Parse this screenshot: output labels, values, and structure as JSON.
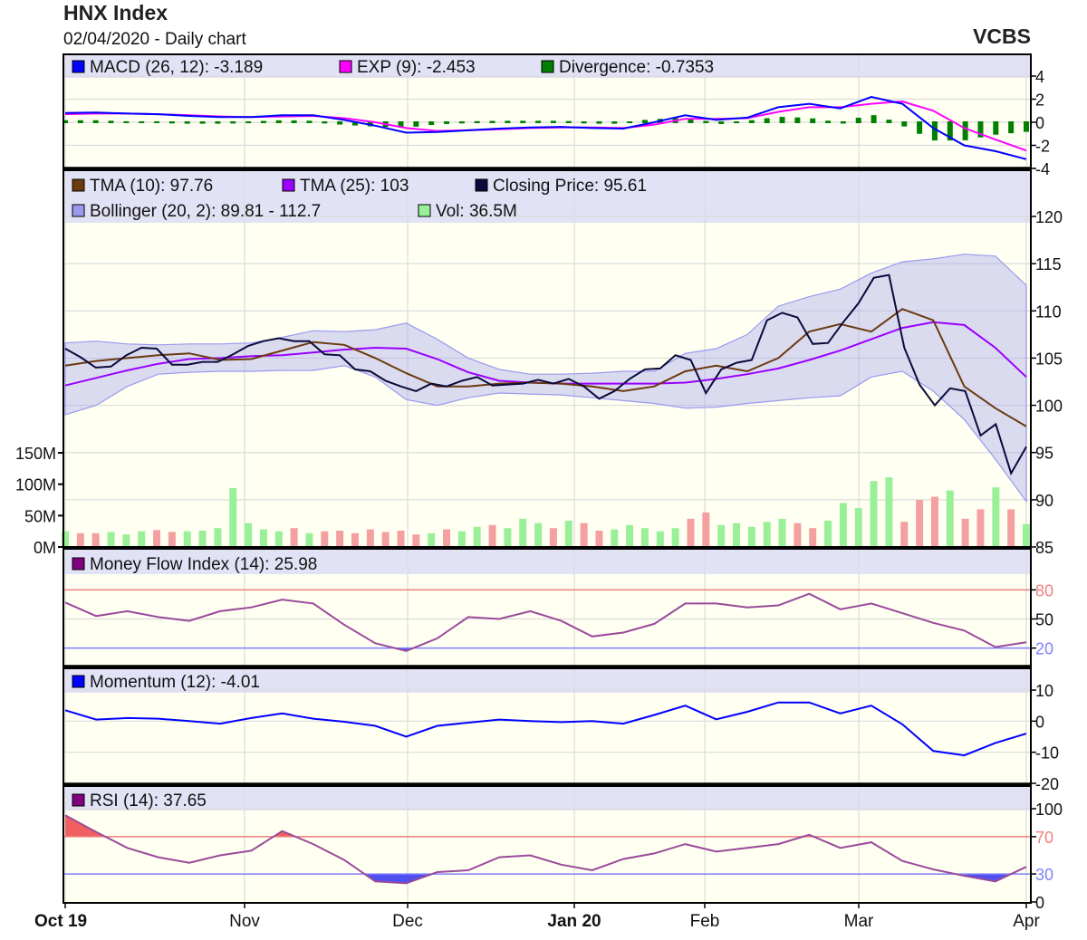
{
  "header": {
    "title": "HNX Index",
    "subtitle": "02/04/2020 - Daily chart",
    "brand": "VCBS"
  },
  "colors": {
    "macd": "#0000ff",
    "exp": "#ff00ff",
    "divergence": "#008000",
    "tma10": "#6b3a0f",
    "tma25": "#9900ff",
    "close": "#0a0a3c",
    "bollinger": "#9999ee",
    "vol_up": "#99f099",
    "vol_down": "#f4a0a0",
    "mfi": "#800080",
    "momentum": "#0000ff",
    "rsi": "#800080",
    "upper_ref": "#f08080",
    "lower_ref": "#8080ff"
  },
  "chart_data": [
    {
      "type": "line",
      "panel": "macd",
      "legend": [
        "MACD (26, 12): -3.189",
        "EXP (9): -2.453",
        "Divergence: -0.7353"
      ],
      "yticks": [
        "4",
        "2",
        "0",
        "-2",
        "-4"
      ],
      "ylim": [
        -4,
        4
      ],
      "series": [
        {
          "name": "MACD",
          "values": [
            0.8,
            0.85,
            0.75,
            0.7,
            0.55,
            0.45,
            0.45,
            0.6,
            0.6,
            0.2,
            -0.3,
            -0.9,
            -0.85,
            -0.7,
            -0.55,
            -0.45,
            -0.4,
            -0.5,
            -0.55,
            0.0,
            0.6,
            0.2,
            0.4,
            1.3,
            1.6,
            1.2,
            2.2,
            1.6,
            -0.5,
            -2.0,
            -2.5,
            -3.2
          ]
        },
        {
          "name": "EXP",
          "values": [
            0.7,
            0.75,
            0.75,
            0.7,
            0.6,
            0.5,
            0.45,
            0.5,
            0.55,
            0.35,
            0.0,
            -0.5,
            -0.75,
            -0.7,
            -0.6,
            -0.5,
            -0.45,
            -0.45,
            -0.5,
            -0.2,
            0.3,
            0.3,
            0.35,
            0.9,
            1.3,
            1.3,
            1.6,
            1.8,
            1.0,
            -0.5,
            -1.5,
            -2.45
          ]
        }
      ]
    },
    {
      "type": "line",
      "panel": "price",
      "legend": [
        "TMA (10): 97.76",
        "TMA (25): 103",
        "Closing Price: 95.61",
        "Bollinger (20, 2): 89.81 - 112.7",
        "Vol: 36.5M"
      ],
      "yticks": [
        "120",
        "115",
        "110",
        "105",
        "100",
        "95",
        "90",
        "85"
      ],
      "ylim": [
        85,
        120
      ],
      "vol_ticks": [
        "150M",
        "100M",
        "50M",
        "0M"
      ],
      "vol_lim": [
        0,
        150
      ],
      "series": [
        {
          "name": "Closing Price",
          "values": [
            106.0,
            105.1,
            104.0,
            104.1,
            105.3,
            106.1,
            106.0,
            104.3,
            104.3,
            104.6,
            104.6,
            105.4,
            106.3,
            106.8,
            107.1,
            106.8,
            106.8,
            105.4,
            105.3,
            103.8,
            103.6,
            102.6,
            102.0,
            101.5,
            102.3,
            102.0,
            102.6,
            103.0,
            102.1,
            102.2,
            102.3,
            102.7,
            102.3,
            102.8,
            102.0,
            100.7,
            101.5,
            102.8,
            103.8,
            103.9,
            105.3,
            104.8,
            101.3,
            103.8,
            104.5,
            104.8,
            109.0,
            109.8,
            109.3,
            106.5,
            106.6,
            108.8,
            110.8,
            113.5,
            113.8,
            106.1,
            102.2,
            100.0,
            101.8,
            101.5,
            96.8,
            98.0,
            92.8,
            95.61
          ]
        },
        {
          "name": "TMA (10)",
          "values": [
            104.2,
            104.7,
            105.0,
            105.3,
            105.5,
            104.8,
            104.9,
            105.8,
            106.7,
            106.4,
            105.0,
            103.4,
            102.0,
            102.0,
            102.3,
            102.4,
            102.3,
            102.0,
            101.5,
            102.0,
            103.6,
            104.2,
            103.6,
            105.0,
            107.8,
            108.6,
            107.8,
            110.2,
            109.0,
            102.0,
            99.7,
            97.76
          ]
        },
        {
          "name": "TMA (25)",
          "values": [
            102.1,
            102.9,
            103.7,
            104.4,
            104.9,
            105.0,
            105.2,
            105.3,
            105.6,
            105.9,
            106.1,
            106.0,
            104.9,
            103.5,
            102.6,
            102.4,
            102.3,
            102.3,
            102.3,
            102.3,
            102.4,
            102.8,
            103.3,
            103.9,
            104.8,
            105.8,
            107.0,
            108.2,
            108.8,
            108.5,
            106.1,
            103.0
          ]
        },
        {
          "name": "Bollinger upper",
          "values": [
            106.6,
            106.8,
            106.5,
            106.4,
            106.5,
            106.5,
            106.6,
            107.2,
            107.9,
            107.8,
            108.0,
            108.7,
            107.0,
            105.0,
            103.8,
            103.3,
            103.3,
            103.4,
            103.6,
            103.6,
            105.5,
            106.0,
            107.5,
            110.5,
            111.5,
            112.3,
            114.0,
            115.2,
            115.5,
            116.0,
            115.8,
            112.7
          ]
        },
        {
          "name": "Bollinger lower",
          "values": [
            99.0,
            100.0,
            102.0,
            103.3,
            103.5,
            103.6,
            103.6,
            103.7,
            103.7,
            104.2,
            103.0,
            100.6,
            100.0,
            100.8,
            101.3,
            101.2,
            101.1,
            100.8,
            100.5,
            100.2,
            99.7,
            99.8,
            100.2,
            100.5,
            100.8,
            101.0,
            103.0,
            103.6,
            101.5,
            98.5,
            94.3,
            89.81
          ]
        },
        {
          "name": "Vol",
          "unit": "M",
          "values": [
            25,
            22,
            22,
            24,
            20,
            25,
            27,
            24,
            25,
            26,
            30,
            94,
            38,
            28,
            25,
            30,
            22,
            25,
            26,
            22,
            28,
            24,
            26,
            20,
            22,
            28,
            25,
            32,
            35,
            30,
            45,
            38,
            30,
            42,
            38,
            26,
            28,
            35,
            30,
            25,
            30,
            45,
            55,
            35,
            38,
            32,
            40,
            45,
            38,
            30,
            42,
            70,
            62,
            105,
            111,
            40,
            75,
            80,
            90,
            45,
            60,
            95,
            60,
            36.5
          ]
        }
      ]
    },
    {
      "type": "line",
      "panel": "mfi",
      "legend": [
        "Money Flow Index (14): 25.98"
      ],
      "yticks": [
        "80",
        "50",
        "20"
      ],
      "ylim": [
        0,
        100
      ],
      "ref_lines": [
        80,
        20
      ],
      "series": [
        {
          "name": "MFI",
          "values": [
            67,
            53,
            58,
            52,
            48,
            58,
            62,
            70,
            66,
            44,
            25,
            17,
            30,
            52,
            50,
            58,
            48,
            32,
            36,
            45,
            66,
            66,
            62,
            64,
            76,
            60,
            66,
            56,
            46,
            38,
            21,
            25.98
          ]
        }
      ]
    },
    {
      "type": "line",
      "panel": "momentum",
      "legend": [
        "Momentum (12): -4.01"
      ],
      "yticks": [
        "10",
        "0",
        "-10",
        "-20"
      ],
      "ylim": [
        -20,
        10
      ],
      "series": [
        {
          "name": "Momentum",
          "values": [
            3.5,
            0.5,
            1.0,
            0.8,
            0,
            -0.8,
            1.0,
            2.5,
            0.8,
            -0.2,
            -1.5,
            -5,
            -1.5,
            -0.5,
            0.5,
            0,
            -0.3,
            0,
            -0.8,
            2,
            5,
            0.6,
            3,
            6,
            6,
            2.5,
            5,
            -1,
            -9.6,
            -11,
            -7,
            -4.01
          ]
        }
      ]
    },
    {
      "type": "line",
      "panel": "rsi",
      "legend": [
        "RSI (14): 37.65"
      ],
      "yticks": [
        "100",
        "70",
        "30",
        "0"
      ],
      "ylim": [
        0,
        100
      ],
      "ref_lines": [
        70,
        30
      ],
      "series": [
        {
          "name": "RSI",
          "values": [
            93,
            75,
            58,
            48,
            42,
            50,
            55,
            76,
            62,
            45,
            22,
            20,
            32,
            34,
            48,
            50,
            40,
            34,
            46,
            52,
            62,
            54,
            58,
            62,
            72,
            58,
            64,
            44,
            35,
            28,
            22,
            37.65
          ]
        }
      ]
    }
  ],
  "x_axis": {
    "labels": [
      "Oct 19",
      "Nov",
      "Dec",
      "Jan 20",
      "Feb",
      "Mar",
      "Apr"
    ]
  }
}
